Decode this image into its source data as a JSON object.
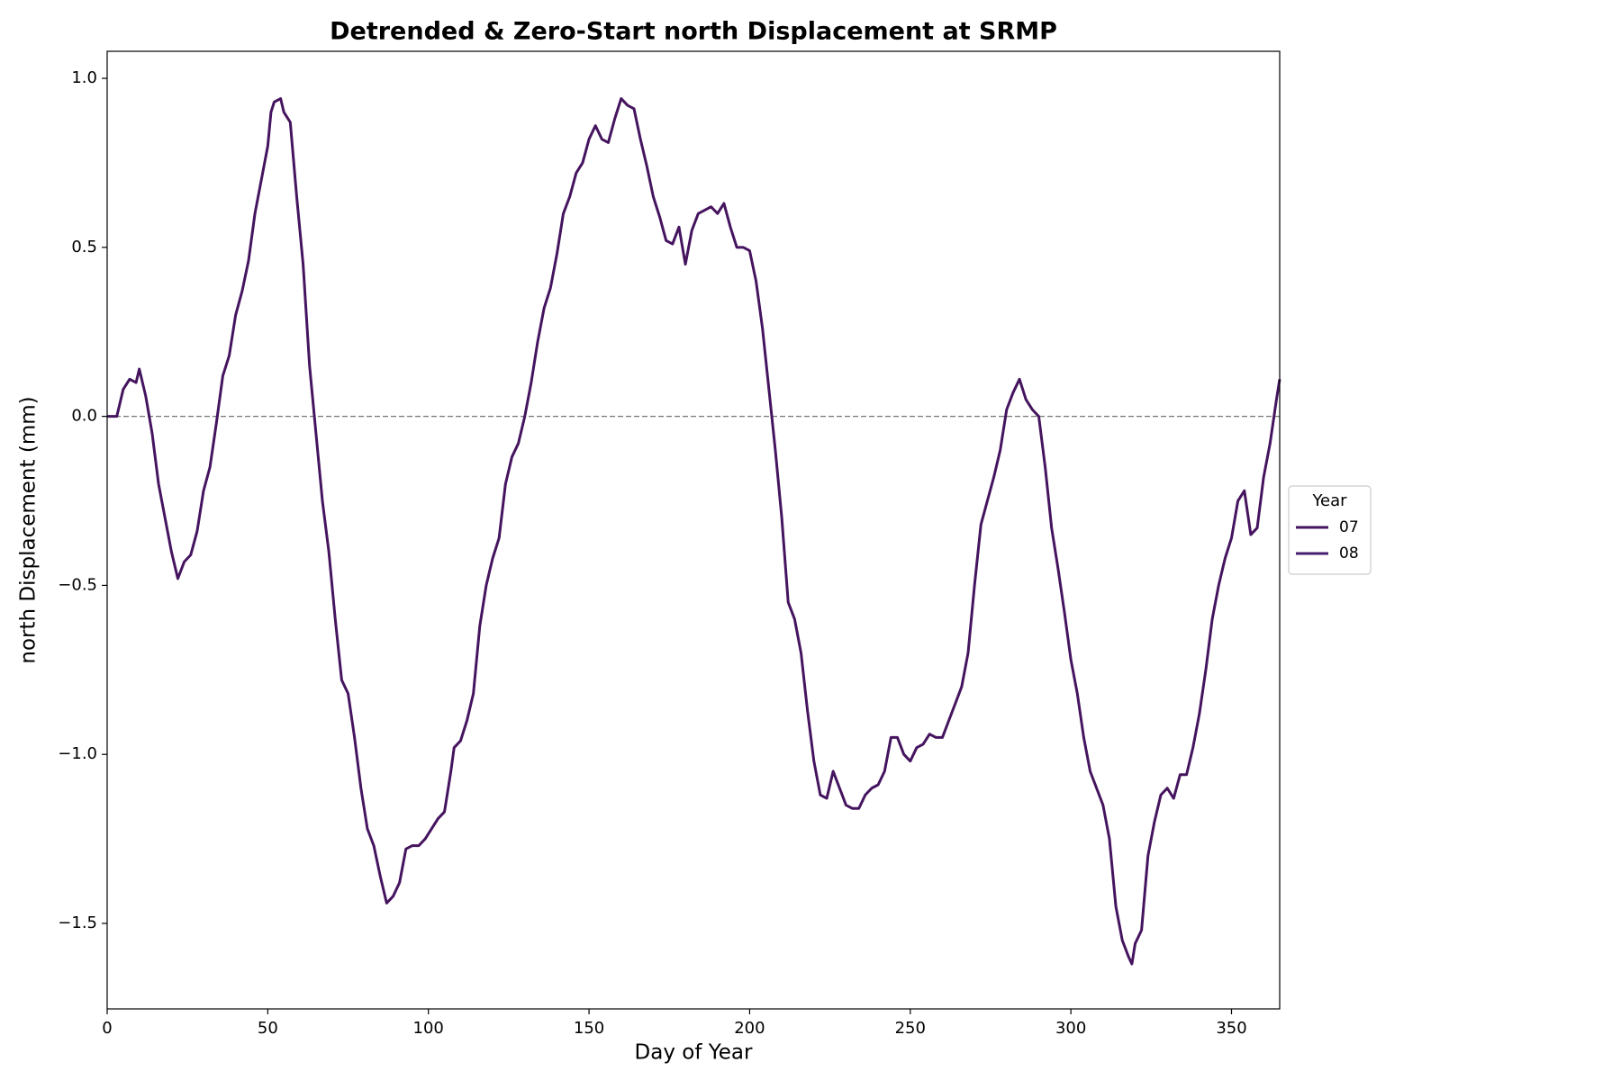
{
  "chart_data": {
    "type": "line",
    "title": "Detrended & Zero-Start north Displacement at SRMP",
    "xlabel": "Day of Year",
    "ylabel": "north Displacement (mm)",
    "legend_title": "Year",
    "legend_position": "right",
    "reference_line": 0,
    "xlim": [
      0,
      365
    ],
    "ylim": [
      -1.753,
      1.08
    ],
    "xticks": [
      0,
      50,
      100,
      150,
      200,
      250,
      300,
      350
    ],
    "yticks": [
      {
        "value": -1.5,
        "label": "−1.5"
      },
      {
        "value": -1.0,
        "label": "−1.0"
      },
      {
        "value": -0.5,
        "label": "−0.5"
      },
      {
        "value": 0,
        "label": "0.0"
      },
      {
        "value": 0.5,
        "label": "0.5"
      },
      {
        "value": 1.0,
        "label": "1.0"
      }
    ],
    "series": [
      {
        "name": "07",
        "color": "#45145f",
        "x": [
          0,
          3,
          5,
          7,
          9,
          10,
          12,
          14,
          16,
          18,
          20,
          22,
          24,
          26,
          28,
          30,
          32,
          34,
          36,
          38,
          40,
          42,
          44,
          46,
          48,
          50,
          51,
          52,
          54,
          55,
          57,
          59,
          61,
          63,
          65,
          67,
          69,
          71,
          73,
          75,
          77,
          79,
          81,
          83,
          85,
          87,
          89,
          91,
          93,
          95,
          97,
          99,
          101,
          103,
          105,
          107,
          108,
          110,
          112,
          114,
          116,
          118,
          120,
          122,
          124,
          126,
          128,
          130,
          132,
          134,
          136,
          138,
          140,
          142,
          144,
          146,
          148,
          150,
          152,
          154,
          156,
          158,
          160,
          162,
          164,
          166,
          168,
          170,
          172,
          174,
          176,
          178,
          180,
          182,
          184,
          186,
          188,
          190,
          192,
          194,
          196,
          198,
          200,
          202,
          204,
          206,
          208,
          210,
          212,
          214,
          216,
          218,
          220,
          222,
          224,
          226,
          228,
          230,
          232,
          234,
          236,
          238,
          240,
          242,
          244,
          246,
          248,
          250,
          252,
          254,
          256,
          258,
          260,
          262,
          264,
          266,
          268,
          270,
          272,
          274,
          276,
          278,
          280,
          282,
          284,
          286,
          288,
          290,
          292,
          294,
          296,
          298,
          300,
          302,
          304,
          306,
          308,
          310,
          312,
          314,
          316,
          318,
          319,
          320,
          322,
          324,
          326,
          328,
          330,
          332,
          334,
          336,
          338,
          340,
          342,
          344,
          346,
          348,
          350,
          352,
          354,
          356,
          358,
          360,
          362,
          364,
          365
        ],
        "values": [
          0,
          0,
          0.08,
          0.11,
          0.1,
          0.14,
          0.06,
          -0.05,
          -0.2,
          -0.3,
          -0.4,
          -0.48,
          -0.43,
          -0.41,
          -0.34,
          -0.22,
          -0.15,
          -0.02,
          0.12,
          0.18,
          0.3,
          0.37,
          0.46,
          0.6,
          0.7,
          0.8,
          0.9,
          0.93,
          0.94,
          0.9,
          0.87,
          0.65,
          0.45,
          0.15,
          -0.05,
          -0.25,
          -0.4,
          -0.6,
          -0.78,
          -0.82,
          -0.95,
          -1.1,
          -1.22,
          -1.27,
          -1.36,
          -1.44,
          -1.42,
          -1.38,
          -1.28,
          -1.27,
          -1.27,
          -1.25,
          -1.22,
          -1.19,
          -1.17,
          -1.05,
          -0.98,
          -0.96,
          -0.9,
          -0.82,
          -0.62,
          -0.5,
          -0.42,
          -0.36,
          -0.2,
          -0.12,
          -0.08,
          0.0,
          0.1,
          0.22,
          0.32,
          0.38,
          0.48,
          0.6,
          0.65,
          0.72,
          0.75,
          0.82,
          0.86,
          0.82,
          0.81,
          0.88,
          0.94,
          0.92,
          0.91,
          0.82,
          0.74,
          0.65,
          0.59,
          0.52,
          0.51,
          0.56,
          0.45,
          0.55,
          0.6,
          0.61,
          0.62,
          0.6,
          0.63,
          0.56,
          0.5,
          0.5,
          0.49,
          0.4,
          0.26,
          0.08,
          -0.1,
          -0.3,
          -0.55,
          -0.6,
          -0.7,
          -0.87,
          -1.02,
          -1.12,
          -1.13,
          -1.05,
          -1.1,
          -1.15,
          -1.16,
          -1.16,
          -1.12,
          -1.1,
          -1.09,
          -1.05,
          -0.95,
          -0.95,
          -1.0,
          -1.02,
          -0.98,
          -0.97,
          -0.94,
          -0.95,
          -0.95,
          -0.9,
          -0.85,
          -0.8,
          -0.7,
          -0.5,
          -0.32,
          -0.25,
          -0.18,
          -0.1,
          0.02,
          0.07,
          0.11,
          0.05,
          0.02,
          0.0,
          -0.15,
          -0.33,
          -0.45,
          -0.58,
          -0.72,
          -0.82,
          -0.95,
          -1.05,
          -1.1,
          -1.15,
          -1.25,
          -1.45,
          -1.55,
          -1.6,
          -1.62,
          -1.56,
          -1.52,
          -1.3,
          -1.2,
          -1.12,
          -1.1,
          -1.13,
          -1.06,
          -1.06,
          -0.98,
          -0.88,
          -0.75,
          -0.6,
          -0.5,
          -0.42,
          -0.36,
          -0.25,
          -0.22,
          -0.35,
          -0.33,
          -0.18,
          -0.08,
          0.05,
          0.11
        ]
      },
      {
        "name": "08",
        "color": "#481c6e",
        "x": [
          0
        ],
        "values": [
          0
        ]
      }
    ]
  }
}
